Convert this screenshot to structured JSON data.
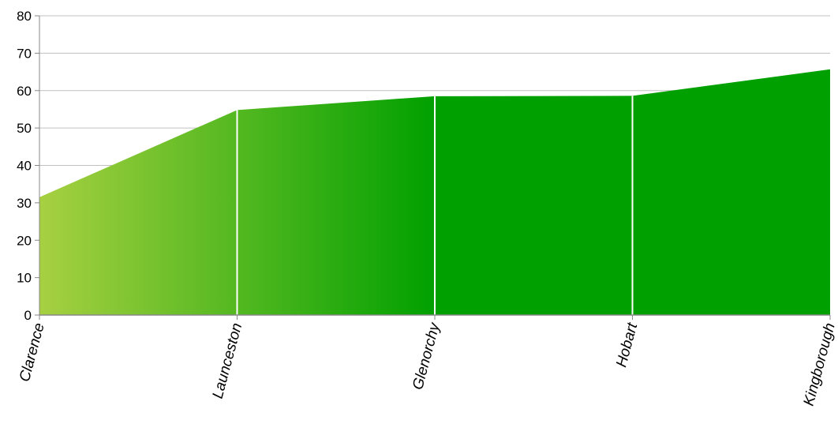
{
  "chart_data": {
    "type": "area",
    "categories": [
      "Clarence",
      "Launceston",
      "Glenorchy",
      "Hobart",
      "Kingborough"
    ],
    "values": [
      31.5,
      54.8,
      58.5,
      58.6,
      65.7
    ],
    "y_ticks": [
      "0",
      "10",
      "20",
      "30",
      "40",
      "50",
      "60",
      "70",
      "80"
    ],
    "ylim": [
      0,
      80
    ],
    "grid": true,
    "legend": "none",
    "colors": {
      "gradient_start": "#a7d041",
      "gradient_end": "#00a000",
      "gridline": "#c0c0c0",
      "axis": "#888888",
      "divider": "#ffffff"
    }
  }
}
